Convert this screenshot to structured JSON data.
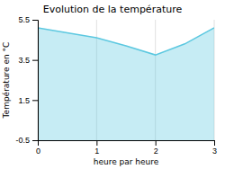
{
  "chart_data": {
    "type": "area",
    "title": "Evolution de la température",
    "xlabel": "heure par heure",
    "ylabel": "Température en °C",
    "x": [
      0,
      0.5,
      1,
      1.5,
      2,
      2.5,
      3
    ],
    "values": [
      5.1,
      4.85,
      4.6,
      4.2,
      3.75,
      4.3,
      5.1
    ],
    "xlim": [
      0,
      3
    ],
    "ylim": [
      -0.5,
      5.5
    ],
    "xticks": [
      0,
      1,
      2,
      3
    ],
    "yticks": [
      -0.5,
      1.5,
      3.5,
      5.5
    ],
    "color": "#5cc8e0",
    "grid": "x"
  }
}
